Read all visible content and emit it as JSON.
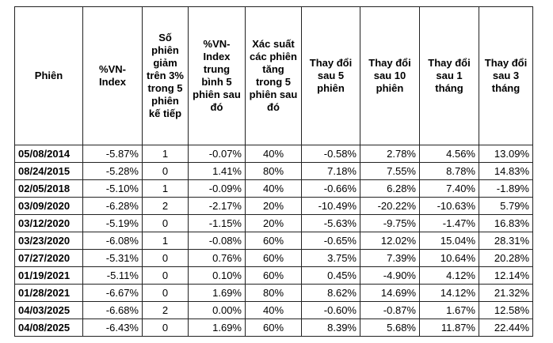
{
  "table": {
    "header": [
      "Phiên",
      "%VN-Index",
      "Số phiên giảm trên 3% trong 5 phiên kế tiếp",
      "%VN-Index trung bình 5 phiên sau đó",
      "Xác suất các phiên tăng trong 5 phiên sau đó",
      "Thay đổi sau 5 phiên",
      "Thay đổi sau 10 phiên",
      "Thay đổi sau 1 tháng",
      "Thay đổi sau 3 tháng"
    ],
    "rows": [
      [
        "05/08/2014",
        "-5.87%",
        "1",
        "-0.07%",
        "40%",
        "-0.58%",
        "2.78%",
        "4.56%",
        "13.09%"
      ],
      [
        "08/24/2015",
        "-5.28%",
        "0",
        "1.41%",
        "80%",
        "7.18%",
        "7.55%",
        "8.78%",
        "14.83%"
      ],
      [
        "02/05/2018",
        "-5.10%",
        "1",
        "-0.09%",
        "40%",
        "-0.66%",
        "6.28%",
        "7.40%",
        "-1.89%"
      ],
      [
        "03/09/2020",
        "-6.28%",
        "2",
        "-2.17%",
        "20%",
        "-10.49%",
        "-20.22%",
        "-10.63%",
        "5.79%"
      ],
      [
        "03/12/2020",
        "-5.19%",
        "0",
        "-1.15%",
        "20%",
        "-5.63%",
        "-9.75%",
        "-1.47%",
        "16.83%"
      ],
      [
        "03/23/2020",
        "-6.08%",
        "1",
        "-0.08%",
        "60%",
        "-0.65%",
        "12.02%",
        "15.04%",
        "28.31%"
      ],
      [
        "07/27/2020",
        "-5.31%",
        "0",
        "0.76%",
        "60%",
        "3.75%",
        "7.39%",
        "10.64%",
        "20.28%"
      ],
      [
        "01/19/2021",
        "-5.11%",
        "0",
        "0.10%",
        "60%",
        "0.45%",
        "-4.90%",
        "4.12%",
        "12.14%"
      ],
      [
        "01/28/2021",
        "-6.67%",
        "0",
        "1.69%",
        "80%",
        "8.62%",
        "14.69%",
        "14.12%",
        "21.32%"
      ],
      [
        "04/03/2025",
        "-6.68%",
        "2",
        "0.00%",
        "40%",
        "-0.60%",
        "-0.87%",
        "1.67%",
        "12.58%"
      ],
      [
        "04/08/2025",
        "-6.43%",
        "0",
        "1.69%",
        "60%",
        "8.39%",
        "5.68%",
        "11.87%",
        "22.44%"
      ]
    ]
  }
}
